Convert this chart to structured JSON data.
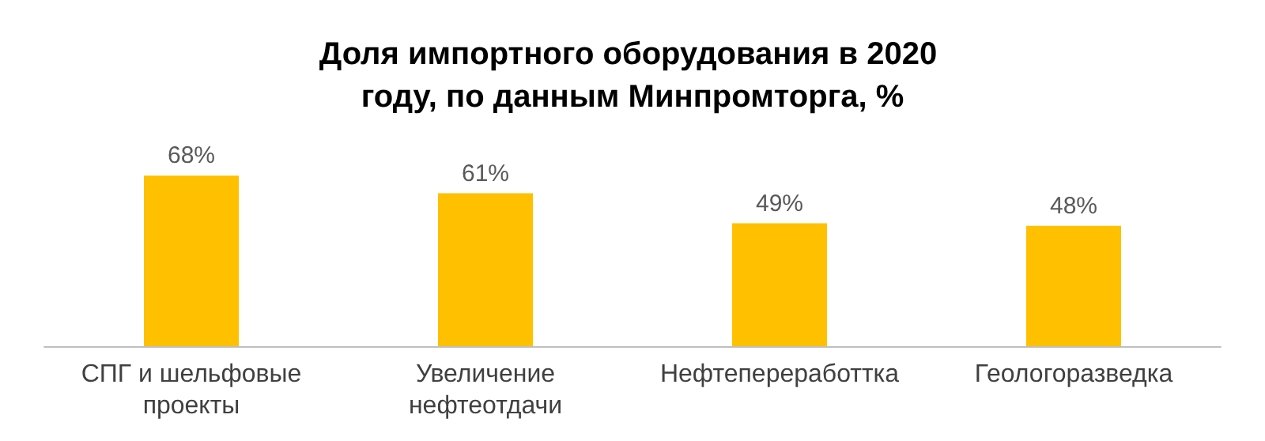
{
  "chart_data": {
    "type": "bar",
    "title": "Доля импортного оборудования в 2020 году, по данным Минпромторга, %",
    "categories": [
      "СПГ и шельфовые проекты",
      "Увеличение нефтеотдачи",
      "Нефтепереработтка",
      "Геологоразведка"
    ],
    "values": [
      68,
      61,
      49,
      48
    ],
    "color": "#ffc000",
    "value_labels": [
      "68%",
      "61%",
      "49%",
      "48%"
    ]
  }
}
